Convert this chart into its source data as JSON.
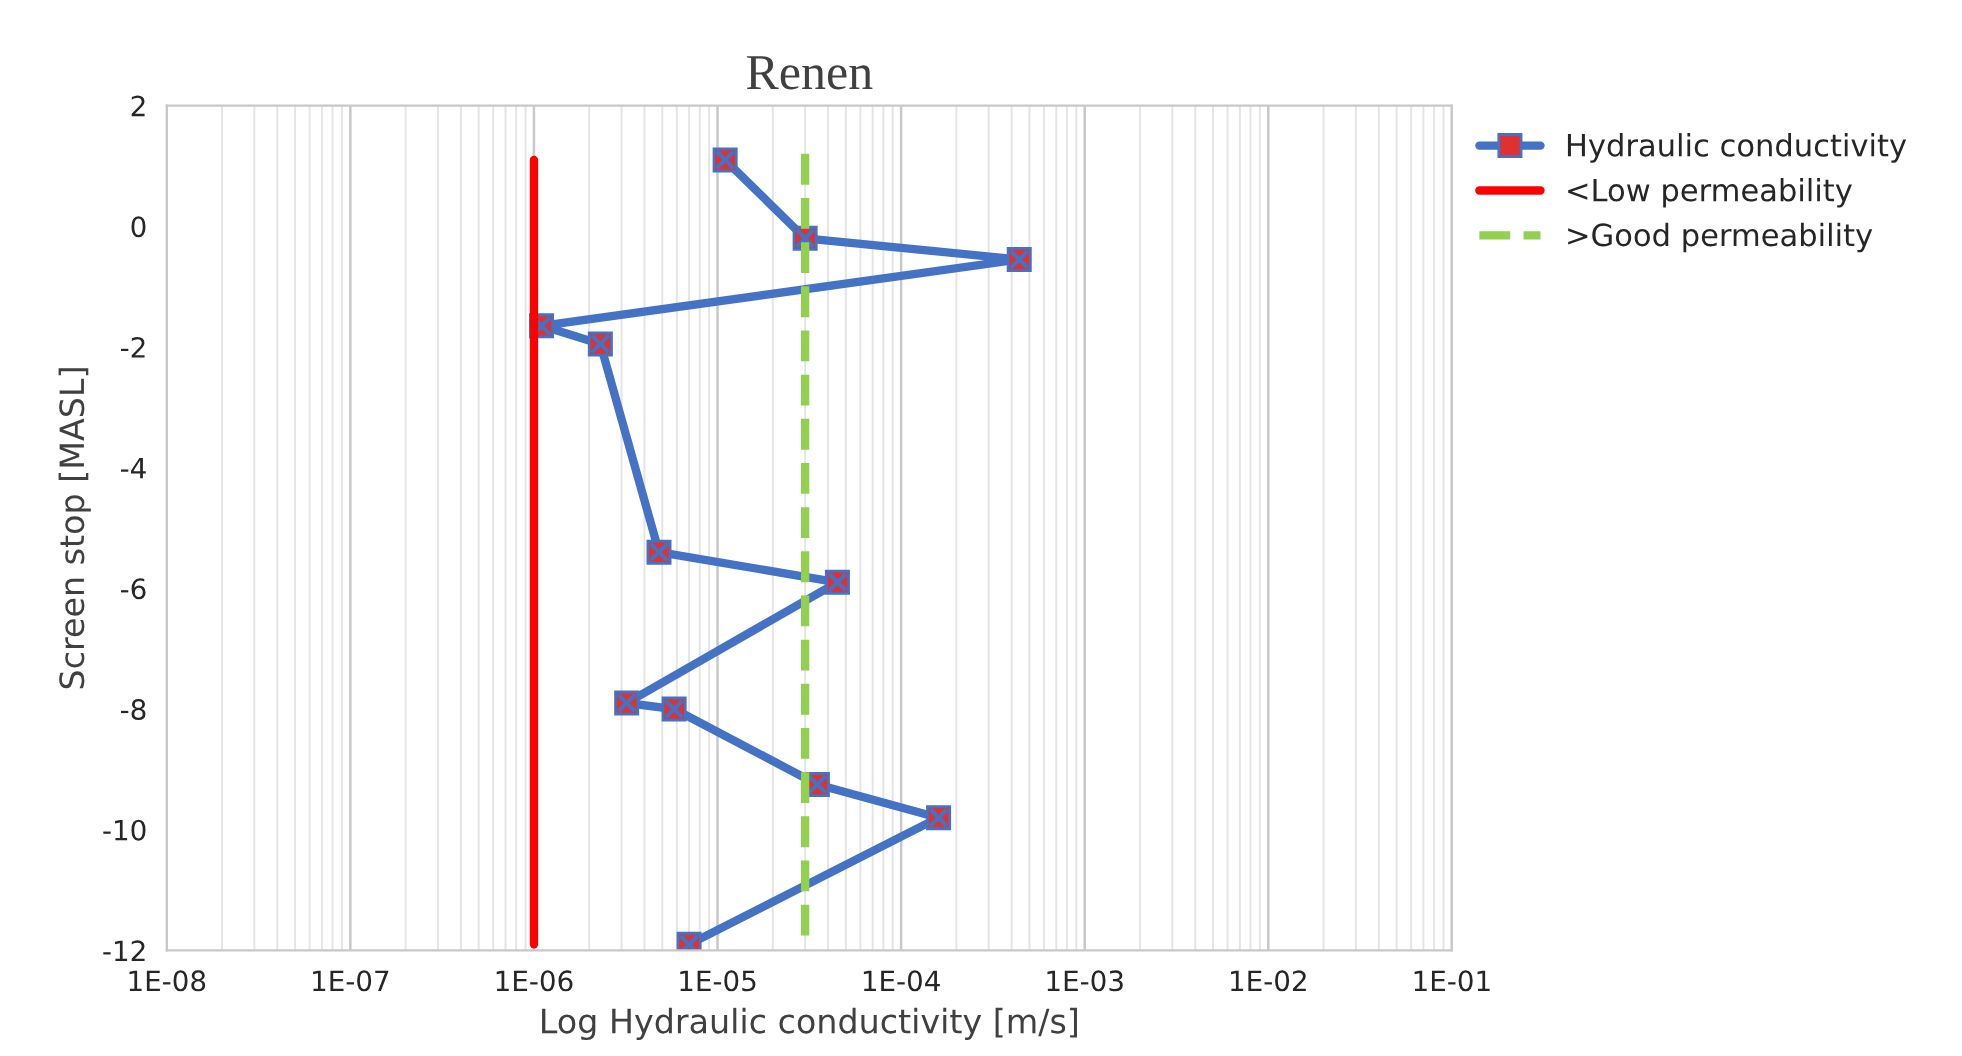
{
  "chart_data": {
    "type": "line",
    "title": "Renen",
    "xlabel": "Log Hydraulic conductivity [m/s]",
    "ylabel": "Screen stop [MASL]",
    "log": "x",
    "grid": "x",
    "legend": "right",
    "xlim": [
      1e-08,
      0.1
    ],
    "xticks": [
      {
        "value": 1e-08,
        "label": "1E-08"
      },
      {
        "value": 1e-07,
        "label": "1E-07"
      },
      {
        "value": 1e-06,
        "label": "1E-06"
      },
      {
        "value": 1e-05,
        "label": "1E-05"
      },
      {
        "value": 0.0001,
        "label": "1E-04"
      },
      {
        "value": 0.001,
        "label": "1E-03"
      },
      {
        "value": 0.01,
        "label": "1E-02"
      },
      {
        "value": 0.1,
        "label": "1E-01"
      }
    ],
    "ylim": [
      -12,
      2
    ],
    "yticks": [
      -12,
      -10,
      -8,
      -6,
      -4,
      -2,
      0,
      2
    ],
    "series": [
      {
        "name": "Hydraulic conductivity",
        "color": "#4472c4",
        "marker": "square",
        "line_style": "solid",
        "x": [
          1.1e-05,
          3e-05,
          0.00044,
          1.1e-06,
          2.3e-06,
          4.8e-06,
          4.5e-05,
          3.2e-06,
          5.8e-06,
          3.5e-05,
          0.00016,
          7e-06
        ],
        "values": [
          1.1,
          -0.2,
          -0.55,
          -1.65,
          -1.95,
          -5.4,
          -5.9,
          -7.9,
          -8.0,
          -9.25,
          -9.8,
          -11.9
        ]
      },
      {
        "name": "<Low permeability",
        "color": "#ff0000",
        "marker": "none",
        "line_style": "solid",
        "x": [
          1e-06,
          1e-06
        ],
        "values": [
          1.1,
          -11.9
        ]
      },
      {
        "name": ">Good permeability",
        "color": "#92d050",
        "marker": "none",
        "line_style": "dashed",
        "x": [
          3e-05,
          3e-05
        ],
        "values": [
          1.2,
          -11.9
        ]
      }
    ]
  }
}
